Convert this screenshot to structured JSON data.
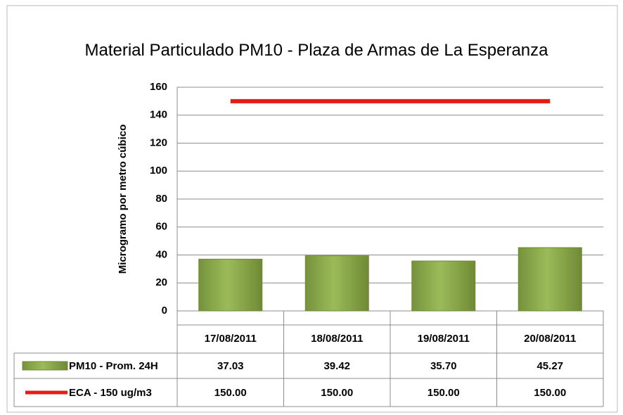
{
  "chart_data": {
    "type": "bar",
    "title": "Material Particulado PM10 - Plaza de Armas de La Esperanza",
    "y_label": "Microgramo por metro cúbico",
    "categories": [
      "17/08/2011",
      "18/08/2011",
      "19/08/2011",
      "20/08/2011"
    ],
    "series": [
      {
        "name": "PM10 - Prom. 24H",
        "type": "bar",
        "color": "#8db04a",
        "values": [
          37.03,
          39.42,
          35.7,
          45.27
        ],
        "value_labels": [
          "37.03",
          "39.42",
          "35.70",
          "45.27"
        ]
      },
      {
        "name": "ECA - 150 ug/m3",
        "type": "line",
        "color": "#e41b17",
        "values": [
          150,
          150,
          150,
          150
        ],
        "value_labels": [
          "150.00",
          "150.00",
          "150.00",
          "150.00"
        ]
      }
    ],
    "ylim": [
      0,
      160
    ],
    "yticks": [
      0,
      20,
      40,
      60,
      80,
      100,
      120,
      140,
      160
    ],
    "grid": true,
    "data_table": true
  }
}
